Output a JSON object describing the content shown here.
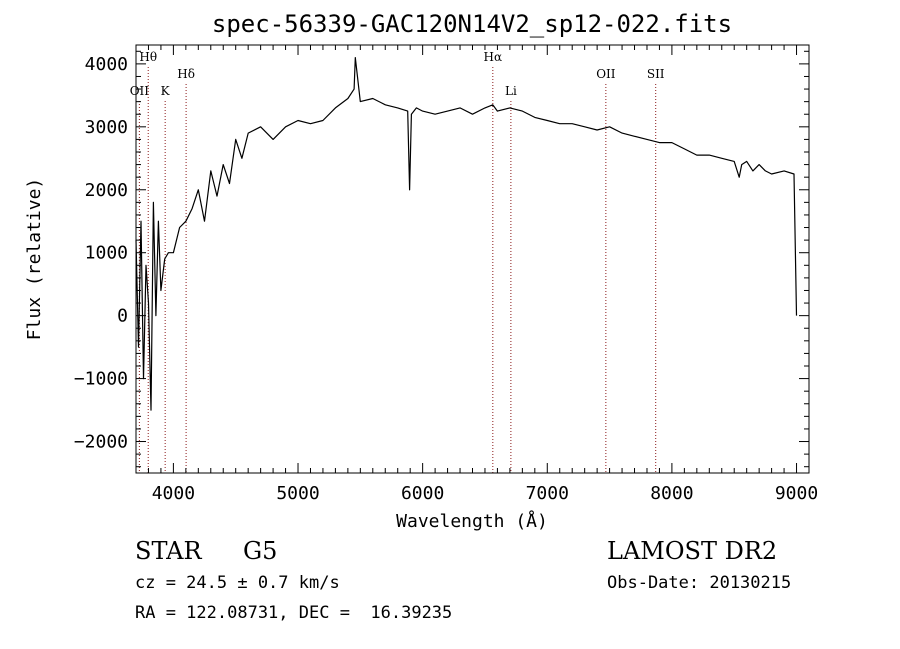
{
  "chart_data": {
    "type": "line",
    "title": "spec-56339-GAC120N14V2_sp12-022.fits",
    "xlabel": "Wavelength (Å)",
    "ylabel": "Flux (relative)",
    "xlim": [
      3700,
      9100
    ],
    "ylim": [
      -2500,
      4300
    ],
    "x_ticks": [
      "4000",
      "5000",
      "6000",
      "7000",
      "8000",
      "9000"
    ],
    "y_ticks": [
      "−2000",
      "−1000",
      "0",
      "1000",
      "2000",
      "3000",
      "4000"
    ],
    "x_tick_values": [
      4000,
      5000,
      6000,
      7000,
      8000,
      9000
    ],
    "y_tick_values": [
      -2000,
      -1000,
      0,
      1000,
      2000,
      3000,
      4000
    ],
    "grid": false,
    "line_color": "#000000",
    "marker_color": "#8b1a1a",
    "series": [
      {
        "x": [
          3700,
          3720,
          3740,
          3760,
          3780,
          3800,
          3820,
          3840,
          3860,
          3880,
          3900,
          3930,
          3960,
          4000,
          4050,
          4100,
          4150,
          4200,
          4250,
          4300,
          4350,
          4400,
          4450,
          4500,
          4550,
          4600,
          4700,
          4800,
          4900,
          5000,
          5100,
          5200,
          5300,
          5400,
          5450,
          5460,
          5500,
          5600,
          5700,
          5800,
          5880,
          5895,
          5910,
          5950,
          6000,
          6100,
          6200,
          6300,
          6400,
          6500,
          6563,
          6600,
          6700,
          6800,
          6900,
          7000,
          7100,
          7200,
          7300,
          7400,
          7500,
          7600,
          7700,
          7800,
          7900,
          8000,
          8100,
          8200,
          8300,
          8400,
          8500,
          8540,
          8560,
          8600,
          8650,
          8700,
          8750,
          8800,
          8900,
          8980,
          9000
        ],
        "y": [
          1200,
          -500,
          1500,
          -1000,
          800,
          200,
          -1500,
          1800,
          0,
          1500,
          400,
          900,
          1000,
          1000,
          1400,
          1500,
          1700,
          2000,
          1500,
          2300,
          1900,
          2400,
          2100,
          2800,
          2500,
          2900,
          3000,
          2800,
          3000,
          3100,
          3050,
          3100,
          3300,
          3450,
          3600,
          4100,
          3400,
          3450,
          3350,
          3300,
          3250,
          2000,
          3200,
          3300,
          3250,
          3200,
          3250,
          3300,
          3200,
          3300,
          3350,
          3250,
          3300,
          3250,
          3150,
          3100,
          3050,
          3050,
          3000,
          2950,
          3000,
          2900,
          2850,
          2800,
          2750,
          2750,
          2650,
          2550,
          2550,
          2500,
          2450,
          2200,
          2400,
          2450,
          2300,
          2400,
          2300,
          2250,
          2300,
          2250,
          0
        ]
      }
    ],
    "line_markers": [
      {
        "label": "OII",
        "x": 3727,
        "row": 2
      },
      {
        "label": "Hθ",
        "x": 3798,
        "row": 0
      },
      {
        "label": "K",
        "x": 3934,
        "row": 2
      },
      {
        "label": "Hδ",
        "x": 4102,
        "row": 1
      },
      {
        "label": "Hα",
        "x": 6563,
        "row": 0
      },
      {
        "label": "Li",
        "x": 6708,
        "row": 2
      },
      {
        "label": "OII",
        "x": 7470,
        "row": 1
      },
      {
        "label": "SII",
        "x": 7870,
        "row": 1
      }
    ]
  },
  "info": {
    "object_class": "STAR",
    "subclass": "G5",
    "survey": "LAMOST DR2",
    "redshift": "cz = 24.5 ± 0.7 km/s",
    "obs_date": "Obs-Date: 20130215",
    "coordinates": "RA = 122.08731, DEC =  16.39235"
  }
}
